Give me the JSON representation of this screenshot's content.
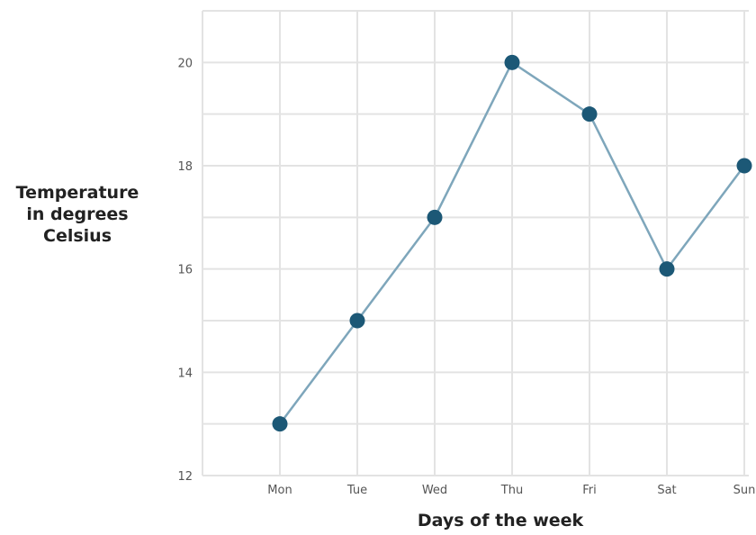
{
  "chart_data": {
    "type": "line",
    "categories": [
      "Mon",
      "Tue",
      "Wed",
      "Thu",
      "Fri",
      "Sat",
      "Sun"
    ],
    "values": [
      13,
      15,
      17,
      20,
      19,
      16,
      18
    ],
    "ylabel_lines": [
      "Temperature",
      "in degrees",
      "Celsius"
    ],
    "xlabel": "Days of the week",
    "ylim": [
      12,
      21
    ],
    "y_ticks": [
      12,
      14,
      16,
      18,
      20
    ],
    "grid": true,
    "colors": {
      "line": "#7ea6bb",
      "marker": "#1c5876",
      "grid": "#e3e3e3"
    }
  }
}
